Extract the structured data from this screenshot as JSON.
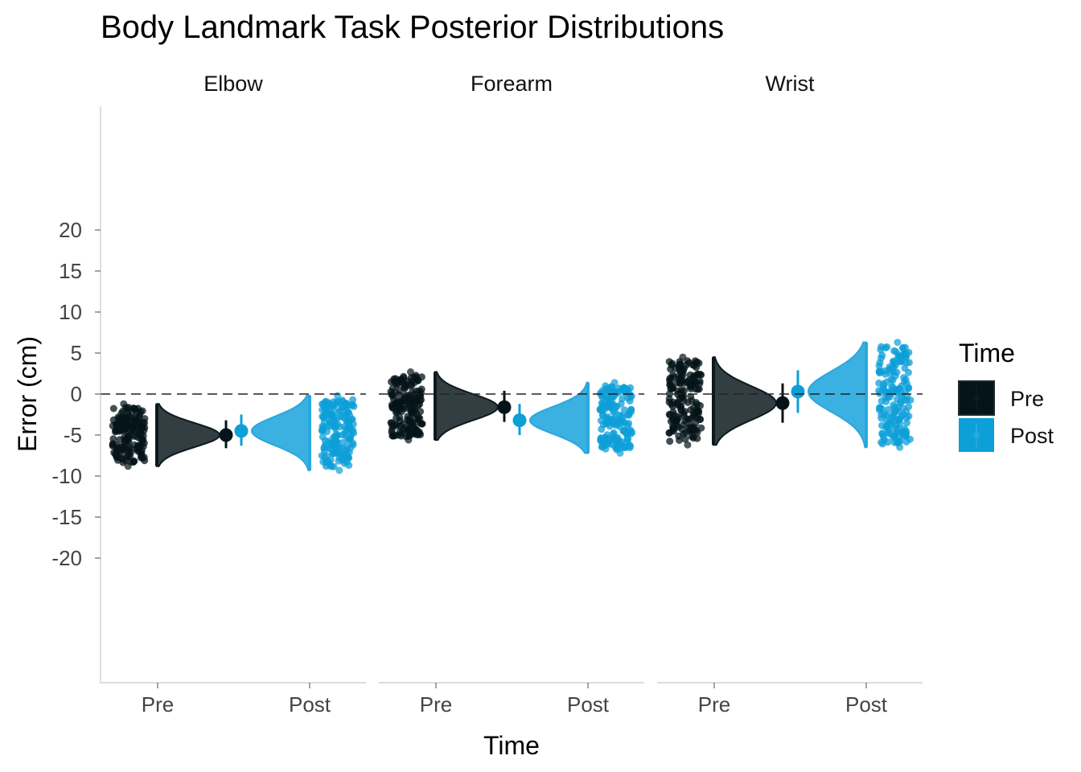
{
  "chart_data": {
    "type": "raincloud",
    "title": "Body Landmark Task Posterior Distributions",
    "xlabel": "Time",
    "ylabel": "Error (cm)",
    "y_ticks": [
      20,
      15,
      10,
      5,
      0,
      -5,
      -10,
      -15,
      -20
    ],
    "ylim": [
      -35,
      35
    ],
    "reference_line": 0,
    "categories": [
      "Pre",
      "Post"
    ],
    "legend": {
      "title": "Time",
      "placement": "right",
      "entries": [
        {
          "label": "Pre",
          "color": "#041418"
        },
        {
          "label": "Post",
          "color": "#0D9FD8"
        }
      ]
    },
    "colors": {
      "Pre": "#041418",
      "Pre_density": "#323E42",
      "Post": "#0D9FD8",
      "Post_density": "#3AB1E0"
    },
    "panels": [
      {
        "name": "Elbow",
        "series": [
          {
            "name": "Pre",
            "mean": -5.0,
            "ci": [
              -6.6,
              -3.2
            ],
            "range": [
              -8.8,
              -1.2
            ]
          },
          {
            "name": "Post",
            "mean": -4.5,
            "ci": [
              -6.3,
              -2.5
            ],
            "range": [
              -9.3,
              -0.2
            ]
          }
        ]
      },
      {
        "name": "Forearm",
        "series": [
          {
            "name": "Pre",
            "mean": -1.6,
            "ci": [
              -3.4,
              0.4
            ],
            "range": [
              -5.6,
              2.7
            ]
          },
          {
            "name": "Post",
            "mean": -3.2,
            "ci": [
              -5.0,
              -1.2
            ],
            "range": [
              -7.2,
              1.4
            ]
          }
        ]
      },
      {
        "name": "Wrist",
        "series": [
          {
            "name": "Pre",
            "mean": -1.1,
            "ci": [
              -3.5,
              1.3
            ],
            "range": [
              -6.2,
              4.5
            ]
          },
          {
            "name": "Post",
            "mean": 0.3,
            "ci": [
              -2.3,
              2.9
            ],
            "range": [
              -6.5,
              6.3
            ]
          }
        ]
      }
    ]
  }
}
